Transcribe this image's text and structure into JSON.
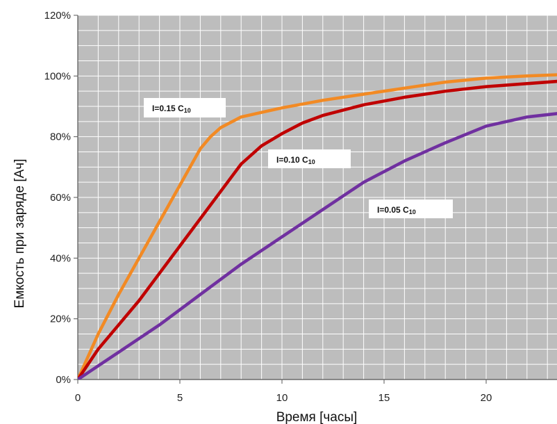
{
  "chart_data": {
    "type": "line",
    "title": "",
    "xlabel": "Время [часы]",
    "ylabel": "Емкость при заряде [Ач]",
    "xlim": [
      0,
      24
    ],
    "ylim": [
      0,
      120
    ],
    "x_ticks": [
      "0",
      "5",
      "10",
      "15",
      "20"
    ],
    "y_ticks": [
      "0%",
      "20%",
      "40%",
      "60%",
      "80%",
      "100%",
      "120%"
    ],
    "grid": true,
    "background_color": "#bdbdbd",
    "series": [
      {
        "name": "I=0.15 C10",
        "label_main": "I=0.15 C",
        "label_sub": "10",
        "color": "#f28a24",
        "x": [
          0,
          1,
          2,
          3,
          4,
          5,
          5.5,
          6,
          6.5,
          7,
          8,
          9,
          10,
          12,
          14,
          16,
          18,
          20,
          22,
          24
        ],
        "y": [
          0,
          15,
          28,
          40,
          52,
          64,
          70,
          76,
          80,
          83,
          86.5,
          88,
          89.5,
          92,
          94,
          96,
          98,
          99.3,
          100,
          100.5
        ]
      },
      {
        "name": "I=0.10 C10",
        "label_main": "I=0.10 C",
        "label_sub": "10",
        "color": "#c00000",
        "x": [
          0,
          1,
          2,
          3,
          4,
          5,
          6,
          7,
          8,
          9,
          10,
          11,
          12,
          14,
          16,
          18,
          20,
          22,
          24
        ],
        "y": [
          0,
          10,
          18,
          26,
          35,
          44,
          53,
          62,
          71,
          77,
          81,
          84.5,
          87,
          90.5,
          93,
          95,
          96.5,
          97.5,
          98.5
        ]
      },
      {
        "name": "I=0.05 C10",
        "label_main": "I=0.05 C",
        "label_sub": "10",
        "color": "#7030a0",
        "x": [
          0,
          2,
          4,
          6,
          8,
          10,
          12,
          14,
          16,
          18,
          20,
          22,
          24
        ],
        "y": [
          0,
          9,
          18,
          28,
          38,
          47,
          56,
          65,
          72,
          78,
          83.5,
          86.5,
          88
        ]
      }
    ]
  }
}
